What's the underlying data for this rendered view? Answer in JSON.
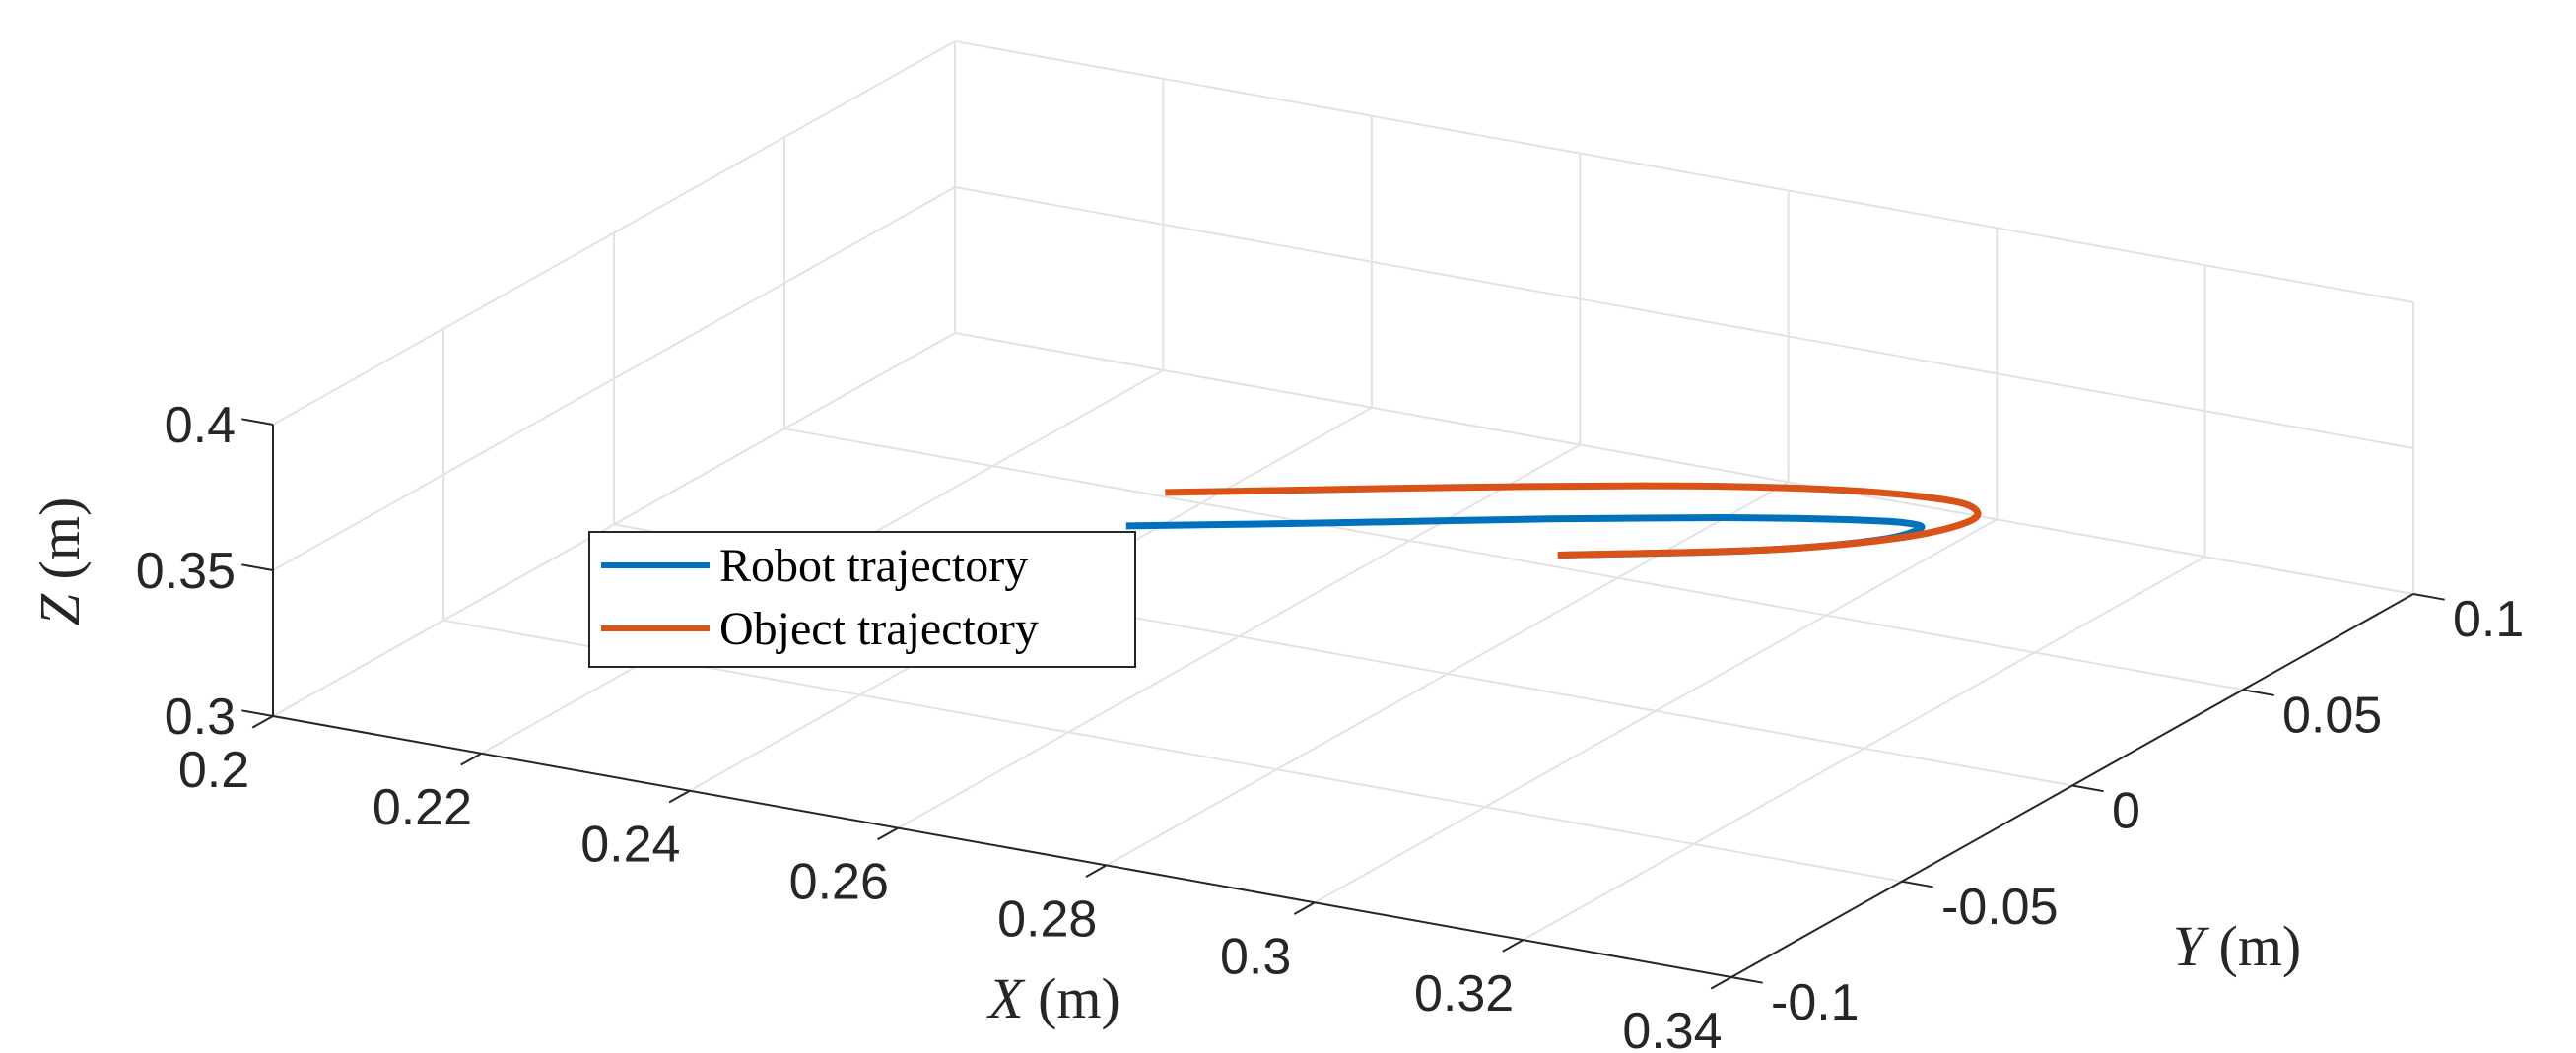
{
  "chart_data": {
    "type": "line3d",
    "title": "",
    "xlabel": {
      "var": "X",
      "unit": " (m)"
    },
    "ylabel": {
      "var": "Y",
      "unit": " (m)"
    },
    "zlabel": {
      "var": "Z",
      "unit": " (m)"
    },
    "xlim": [
      0.2,
      0.34
    ],
    "ylim": [
      -0.1,
      0.1
    ],
    "zlim": [
      0.3,
      0.4
    ],
    "xticks": [
      0.2,
      0.22,
      0.24,
      0.26,
      0.28,
      0.3,
      0.32,
      0.34
    ],
    "xtick_labels": [
      "0.2",
      "0.22",
      "0.24",
      "0.26",
      "0.28",
      "0.3",
      "0.32",
      "0.34"
    ],
    "yticks": [
      -0.1,
      -0.05,
      0,
      0.05,
      0.1
    ],
    "ytick_labels": [
      "-0.1",
      "-0.05",
      "0",
      "0.05",
      "0.1"
    ],
    "zticks": [
      0.3,
      0.35,
      0.4
    ],
    "ztick_labels": [
      "0.3",
      "0.35",
      "0.4"
    ],
    "grid": true,
    "legend_position": "middle-left",
    "series": [
      {
        "name": "Robot trajectory",
        "color": "#0072BD",
        "points": [
          [
            0.2675,
            -0.056,
            0.3795
          ],
          [
            0.2751,
            -0.0463,
            0.3785
          ],
          [
            0.2823,
            -0.0362,
            0.3771
          ],
          [
            0.289,
            -0.0261,
            0.3754
          ],
          [
            0.2951,
            -0.0162,
            0.3734
          ],
          [
            0.3007,
            -0.0067,
            0.371
          ],
          [
            0.3056,
            0.0024,
            0.3683
          ],
          [
            0.3099,
            0.0108,
            0.3653
          ],
          [
            0.3133,
            0.0184,
            0.3619
          ],
          [
            0.3156,
            0.0248,
            0.3583
          ],
          [
            0.3162,
            0.0282,
            0.3545
          ],
          [
            0.3132,
            0.0241,
            0.3511
          ],
          [
            0.305,
            0.0138,
            0.3492
          ],
          [
            0.291,
            -0.0012,
            0.3485
          ]
        ]
      },
      {
        "name": "Object trajectory",
        "color": "#D95319",
        "points": [
          [
            0.266,
            -0.04,
            0.3795
          ],
          [
            0.2735,
            -0.0294,
            0.378
          ],
          [
            0.2815,
            -0.018,
            0.3764
          ],
          [
            0.2895,
            -0.0063,
            0.3744
          ],
          [
            0.297,
            0.0051,
            0.372
          ],
          [
            0.304,
            0.0156,
            0.3692
          ],
          [
            0.3101,
            0.0246,
            0.366
          ],
          [
            0.315,
            0.0316,
            0.3624
          ],
          [
            0.3183,
            0.0359,
            0.3586
          ],
          [
            0.3189,
            0.0349,
            0.3546
          ],
          [
            0.3148,
            0.0275,
            0.351
          ],
          [
            0.306,
            0.0153,
            0.3491
          ],
          [
            0.291,
            -0.0012,
            0.3485
          ]
        ]
      }
    ]
  }
}
